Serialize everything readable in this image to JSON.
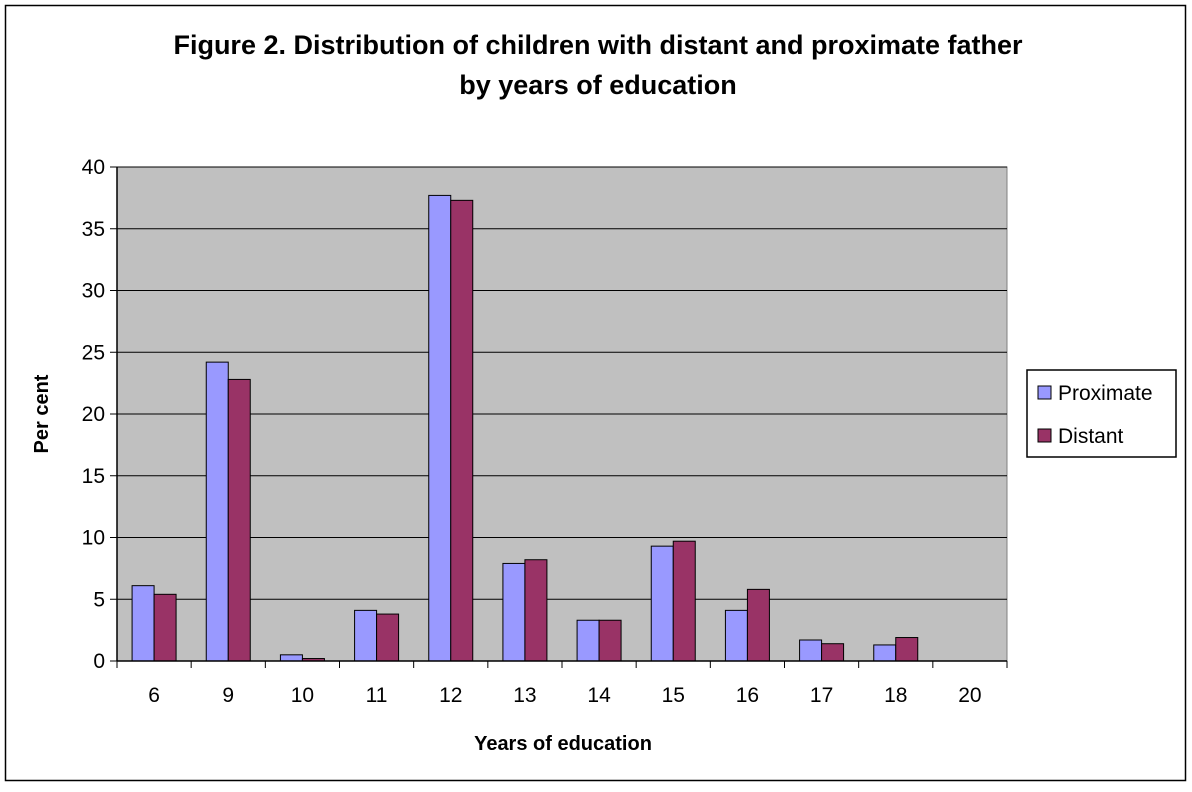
{
  "title_lines": [
    "Figure 2. Distribution of children with distant and proximate father",
    "by years of education"
  ],
  "chart_data": {
    "type": "bar",
    "title": "Figure 2. Distribution of children with distant and proximate father by years of education",
    "xlabel": "Years of education",
    "ylabel": "Per cent",
    "categories": [
      "6",
      "9",
      "10",
      "11",
      "12",
      "13",
      "14",
      "15",
      "16",
      "17",
      "18",
      "20"
    ],
    "series": [
      {
        "name": "Proximate",
        "color": "#9999ff",
        "values": [
          6.1,
          24.2,
          0.5,
          4.1,
          37.7,
          7.9,
          3.3,
          9.3,
          4.1,
          1.7,
          1.3,
          0
        ]
      },
      {
        "name": "Distant",
        "color": "#993366",
        "values": [
          5.4,
          22.8,
          0.2,
          3.8,
          37.3,
          8.2,
          3.3,
          9.7,
          5.8,
          1.4,
          1.9,
          0
        ]
      }
    ],
    "ylim": [
      0,
      40
    ],
    "yticks": [
      0,
      5,
      10,
      15,
      20,
      25,
      30,
      35,
      40
    ],
    "grid": true,
    "legend": "right",
    "plot_background": "#c0c0c0"
  }
}
